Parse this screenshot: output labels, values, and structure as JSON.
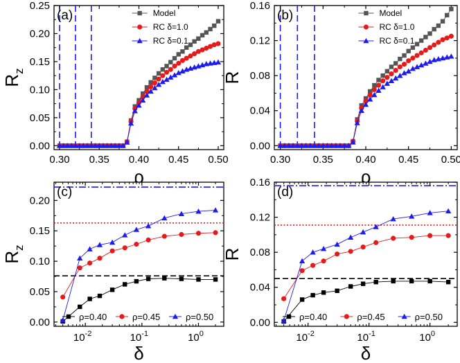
{
  "chart_data": [
    {
      "panel": "a",
      "type": "line",
      "panel_label": "(a)",
      "xlabel": "ρ",
      "ylabel": "R",
      "ylabel_sub": "z",
      "xscale": "linear",
      "xlim": [
        0.293,
        0.507
      ],
      "ylim": [
        -0.007,
        0.25
      ],
      "xticks": [
        0.3,
        0.35,
        0.4,
        0.45,
        0.5
      ],
      "xtick_labels": [
        "0.30",
        "0.35",
        "0.40",
        "0.45",
        "0.50"
      ],
      "yticks": [
        0.0,
        0.05,
        0.1,
        0.15,
        0.2,
        0.25
      ],
      "ytick_labels": [
        "0.00",
        "0.05",
        "0.10",
        "0.15",
        "0.20",
        "0.25"
      ],
      "vlines": [
        0.3,
        0.32,
        0.34
      ],
      "hlines": [],
      "legend_position": "top-right",
      "x": [
        0.3,
        0.305,
        0.31,
        0.315,
        0.32,
        0.325,
        0.33,
        0.335,
        0.34,
        0.345,
        0.35,
        0.355,
        0.36,
        0.365,
        0.37,
        0.375,
        0.38,
        0.385,
        0.39,
        0.395,
        0.4,
        0.405,
        0.41,
        0.415,
        0.42,
        0.425,
        0.43,
        0.435,
        0.44,
        0.445,
        0.45,
        0.455,
        0.46,
        0.465,
        0.47,
        0.475,
        0.48,
        0.485,
        0.49,
        0.495,
        0.5
      ],
      "series": [
        {
          "name": "Model",
          "color": "#555555",
          "marker": "square",
          "values": [
            0,
            0,
            0,
            0,
            0,
            0,
            0,
            0,
            0,
            0,
            0,
            0,
            0,
            0,
            0,
            0,
            0,
            0.007,
            0.045,
            0.07,
            0.081,
            0.093,
            0.104,
            0.113,
            0.121,
            0.129,
            0.136,
            0.142,
            0.149,
            0.156,
            0.163,
            0.168,
            0.175,
            0.18,
            0.186,
            0.191,
            0.197,
            0.202,
            0.208,
            0.214,
            0.222
          ]
        },
        {
          "name": "RC δ=1.0",
          "color": "#e51b1b",
          "marker": "circle",
          "values": [
            0,
            0,
            0,
            0,
            0,
            0,
            0,
            0,
            0,
            0,
            0,
            0,
            0,
            0,
            0,
            0,
            0,
            0.007,
            0.043,
            0.066,
            0.077,
            0.087,
            0.097,
            0.105,
            0.112,
            0.119,
            0.125,
            0.131,
            0.136,
            0.142,
            0.147,
            0.152,
            0.156,
            0.16,
            0.164,
            0.168,
            0.171,
            0.174,
            0.177,
            0.18,
            0.182
          ]
        },
        {
          "name": "RC δ=0.1",
          "color": "#1c1cf0",
          "marker": "triangle",
          "values": [
            0,
            0,
            0,
            0,
            0,
            0,
            0,
            0,
            0,
            0,
            0,
            0,
            0,
            0,
            0,
            0,
            0,
            0.006,
            0.04,
            0.062,
            0.072,
            0.081,
            0.09,
            0.097,
            0.103,
            0.109,
            0.114,
            0.118,
            0.122,
            0.126,
            0.13,
            0.133,
            0.136,
            0.138,
            0.14,
            0.142,
            0.144,
            0.146,
            0.147,
            0.148,
            0.149
          ]
        }
      ]
    },
    {
      "panel": "b",
      "type": "line",
      "panel_label": "(b)",
      "xlabel": "ρ",
      "ylabel": "R",
      "ylabel_sub": "",
      "xscale": "linear",
      "xlim": [
        0.293,
        0.507
      ],
      "ylim": [
        -0.0045,
        0.16
      ],
      "xticks": [
        0.3,
        0.35,
        0.4,
        0.45,
        0.5
      ],
      "xtick_labels": [
        "0.30",
        "0.35",
        "0.40",
        "0.45",
        "0.50"
      ],
      "yticks": [
        0.0,
        0.04,
        0.08,
        0.12,
        0.16
      ],
      "ytick_labels": [
        "0.00",
        "0.04",
        "0.08",
        "0.12",
        "0.16"
      ],
      "vlines": [
        0.3,
        0.32,
        0.34
      ],
      "hlines": [],
      "legend_position": "top-right",
      "x": [
        0.3,
        0.305,
        0.31,
        0.315,
        0.32,
        0.325,
        0.33,
        0.335,
        0.34,
        0.345,
        0.35,
        0.355,
        0.36,
        0.365,
        0.37,
        0.375,
        0.38,
        0.385,
        0.39,
        0.395,
        0.4,
        0.405,
        0.41,
        0.415,
        0.42,
        0.425,
        0.43,
        0.435,
        0.44,
        0.445,
        0.45,
        0.455,
        0.46,
        0.465,
        0.47,
        0.475,
        0.48,
        0.485,
        0.49,
        0.495,
        0.5
      ],
      "series": [
        {
          "name": "Model",
          "color": "#555555",
          "marker": "square",
          "values": [
            0,
            0,
            0,
            0,
            0,
            0,
            0,
            0,
            0,
            0,
            0,
            0,
            0,
            0,
            0,
            0,
            0,
            0.005,
            0.03,
            0.046,
            0.054,
            0.062,
            0.069,
            0.075,
            0.08,
            0.085,
            0.09,
            0.094,
            0.099,
            0.103,
            0.108,
            0.112,
            0.116,
            0.12,
            0.124,
            0.128,
            0.133,
            0.137,
            0.142,
            0.149,
            0.156
          ]
        },
        {
          "name": "RC δ=1.0",
          "color": "#e51b1b",
          "marker": "circle",
          "values": [
            0,
            0,
            0,
            0,
            0,
            0,
            0,
            0,
            0,
            0,
            0,
            0,
            0,
            0,
            0,
            0,
            0,
            0.005,
            0.028,
            0.043,
            0.051,
            0.058,
            0.064,
            0.069,
            0.074,
            0.078,
            0.082,
            0.086,
            0.09,
            0.093,
            0.097,
            0.1,
            0.103,
            0.106,
            0.109,
            0.112,
            0.115,
            0.118,
            0.121,
            0.123,
            0.125
          ]
        },
        {
          "name": "RC δ=0.1",
          "color": "#1c1cf0",
          "marker": "triangle",
          "values": [
            0,
            0,
            0,
            0,
            0,
            0,
            0,
            0,
            0,
            0,
            0,
            0,
            0,
            0,
            0,
            0,
            0,
            0.004,
            0.026,
            0.04,
            0.047,
            0.053,
            0.058,
            0.063,
            0.067,
            0.071,
            0.074,
            0.077,
            0.08,
            0.083,
            0.085,
            0.088,
            0.09,
            0.092,
            0.094,
            0.096,
            0.098,
            0.099,
            0.1,
            0.101,
            0.102
          ]
        }
      ]
    },
    {
      "panel": "c",
      "type": "line",
      "panel_label": "(c)",
      "xlabel": "δ",
      "ylabel": "R",
      "ylabel_sub": "z",
      "xscale": "log",
      "xlim": [
        0.0028,
        2.8
      ],
      "ylim": [
        -0.007,
        0.23
      ],
      "xticks": [
        0.01,
        0.1,
        1
      ],
      "xtick_labels": [
        {
          "base": "10",
          "exp": "-2"
        },
        {
          "base": "10",
          "exp": "-1"
        },
        {
          "base": "10",
          "exp": "0"
        }
      ],
      "yticks": [
        0.0,
        0.05,
        0.1,
        0.15,
        0.2
      ],
      "ytick_labels": [
        "0.00",
        "0.05",
        "0.10",
        "0.15",
        "0.20"
      ],
      "vlines": [],
      "hlines": [
        {
          "y": 0.222,
          "color": "#1c1cf0",
          "style": "dashdot"
        },
        {
          "y": 0.163,
          "color": "#e51b1b",
          "style": "dotted"
        },
        {
          "y": 0.076,
          "color": "#000000",
          "style": "dashed"
        }
      ],
      "legend_position": "bottom",
      "x": [
        0.004,
        0.008,
        0.012,
        0.018,
        0.03,
        0.05,
        0.08,
        0.13,
        0.25,
        0.5,
        1.0,
        2.0
      ],
      "series": [
        {
          "name": "ρ=0.40",
          "color": "#000000",
          "marker": "square",
          "values": [
            0.001,
            0.025,
            0.038,
            0.043,
            0.053,
            0.062,
            0.067,
            0.071,
            0.072,
            0.071,
            0.07,
            0.07
          ]
        },
        {
          "name": "ρ=0.45",
          "color": "#e51b1b",
          "marker": "circle",
          "values": [
            0.041,
            0.089,
            0.097,
            0.105,
            0.117,
            0.122,
            0.128,
            0.135,
            0.141,
            0.144,
            0.146,
            0.147
          ]
        },
        {
          "name": "ρ=0.50",
          "color": "#1c1cf0",
          "marker": "triangle",
          "values": [
            0.003,
            0.105,
            0.12,
            0.127,
            0.131,
            0.143,
            0.152,
            0.158,
            0.171,
            0.178,
            0.182,
            0.184
          ]
        }
      ]
    },
    {
      "panel": "d",
      "type": "line",
      "panel_label": "(d)",
      "xlabel": "δ",
      "ylabel": "R",
      "ylabel_sub": "",
      "xscale": "log",
      "xlim": [
        0.0028,
        2.8
      ],
      "ylim": [
        -0.0045,
        0.16
      ],
      "xticks": [
        0.01,
        0.1,
        1
      ],
      "xtick_labels": [
        {
          "base": "10",
          "exp": "-2"
        },
        {
          "base": "10",
          "exp": "-1"
        },
        {
          "base": "10",
          "exp": "0"
        }
      ],
      "yticks": [
        0.0,
        0.04,
        0.08,
        0.12,
        0.16
      ],
      "ytick_labels": [
        "0.00",
        "0.04",
        "0.08",
        "0.12",
        "0.16"
      ],
      "vlines": [],
      "hlines": [
        {
          "y": 0.156,
          "color": "#1c1cf0",
          "style": "dashdot"
        },
        {
          "y": 0.111,
          "color": "#e51b1b",
          "style": "dotted"
        },
        {
          "y": 0.05,
          "color": "#000000",
          "style": "dashed"
        }
      ],
      "legend_position": "bottom",
      "x": [
        0.004,
        0.008,
        0.012,
        0.018,
        0.03,
        0.05,
        0.08,
        0.13,
        0.25,
        0.5,
        1.0,
        2.0
      ],
      "series": [
        {
          "name": "ρ=0.40",
          "color": "#000000",
          "marker": "square",
          "values": [
            0.001,
            0.026,
            0.031,
            0.034,
            0.036,
            0.041,
            0.044,
            0.046,
            0.047,
            0.047,
            0.047,
            0.046
          ]
        },
        {
          "name": "ρ=0.45",
          "color": "#e51b1b",
          "marker": "circle",
          "values": [
            0.027,
            0.059,
            0.065,
            0.07,
            0.078,
            0.081,
            0.086,
            0.091,
            0.096,
            0.097,
            0.099,
            0.099
          ]
        },
        {
          "name": "ρ=0.50",
          "color": "#1c1cf0",
          "marker": "triangle",
          "values": [
            0.002,
            0.07,
            0.08,
            0.084,
            0.089,
            0.097,
            0.103,
            0.109,
            0.118,
            0.121,
            0.125,
            0.127
          ]
        }
      ]
    }
  ]
}
